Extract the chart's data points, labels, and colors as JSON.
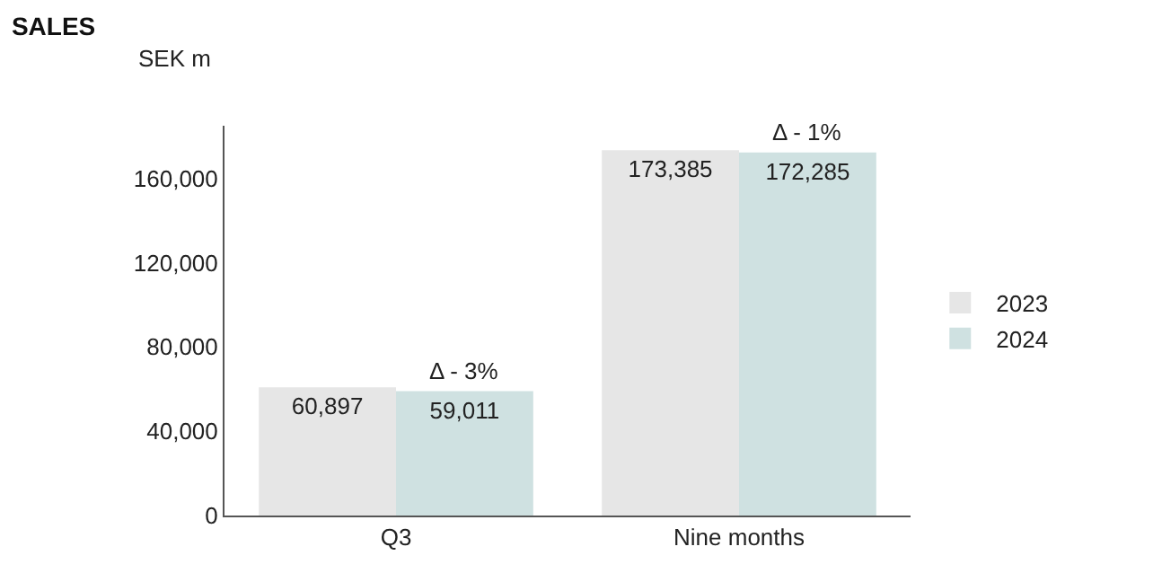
{
  "chart_data": {
    "type": "bar",
    "title": "SALES",
    "ylabel": "SEK m",
    "categories": [
      "Q3",
      "Nine months"
    ],
    "series": [
      {
        "name": "2023",
        "color": "#e6e6e6",
        "values": [
          60897,
          173385
        ],
        "value_labels": [
          "60,897",
          "173,385"
        ]
      },
      {
        "name": "2024",
        "color": "#cfe1e1",
        "values": [
          59011,
          172285
        ],
        "value_labels": [
          "59,011",
          "172,285"
        ]
      }
    ],
    "annotations": [
      {
        "text": "Δ - 3%",
        "x": "Q3",
        "y": 59011
      },
      {
        "text": "Δ - 1%",
        "x": "Nine months",
        "y": 172285
      }
    ],
    "ylim": [
      0,
      185000
    ],
    "yticks": [
      {
        "value": 0,
        "label": "0"
      },
      {
        "value": 40000,
        "label": "40,000"
      },
      {
        "value": 80000,
        "label": "80,000"
      },
      {
        "value": 120000,
        "label": "120,000"
      },
      {
        "value": 160000,
        "label": "160,000"
      }
    ],
    "legend": "right"
  }
}
